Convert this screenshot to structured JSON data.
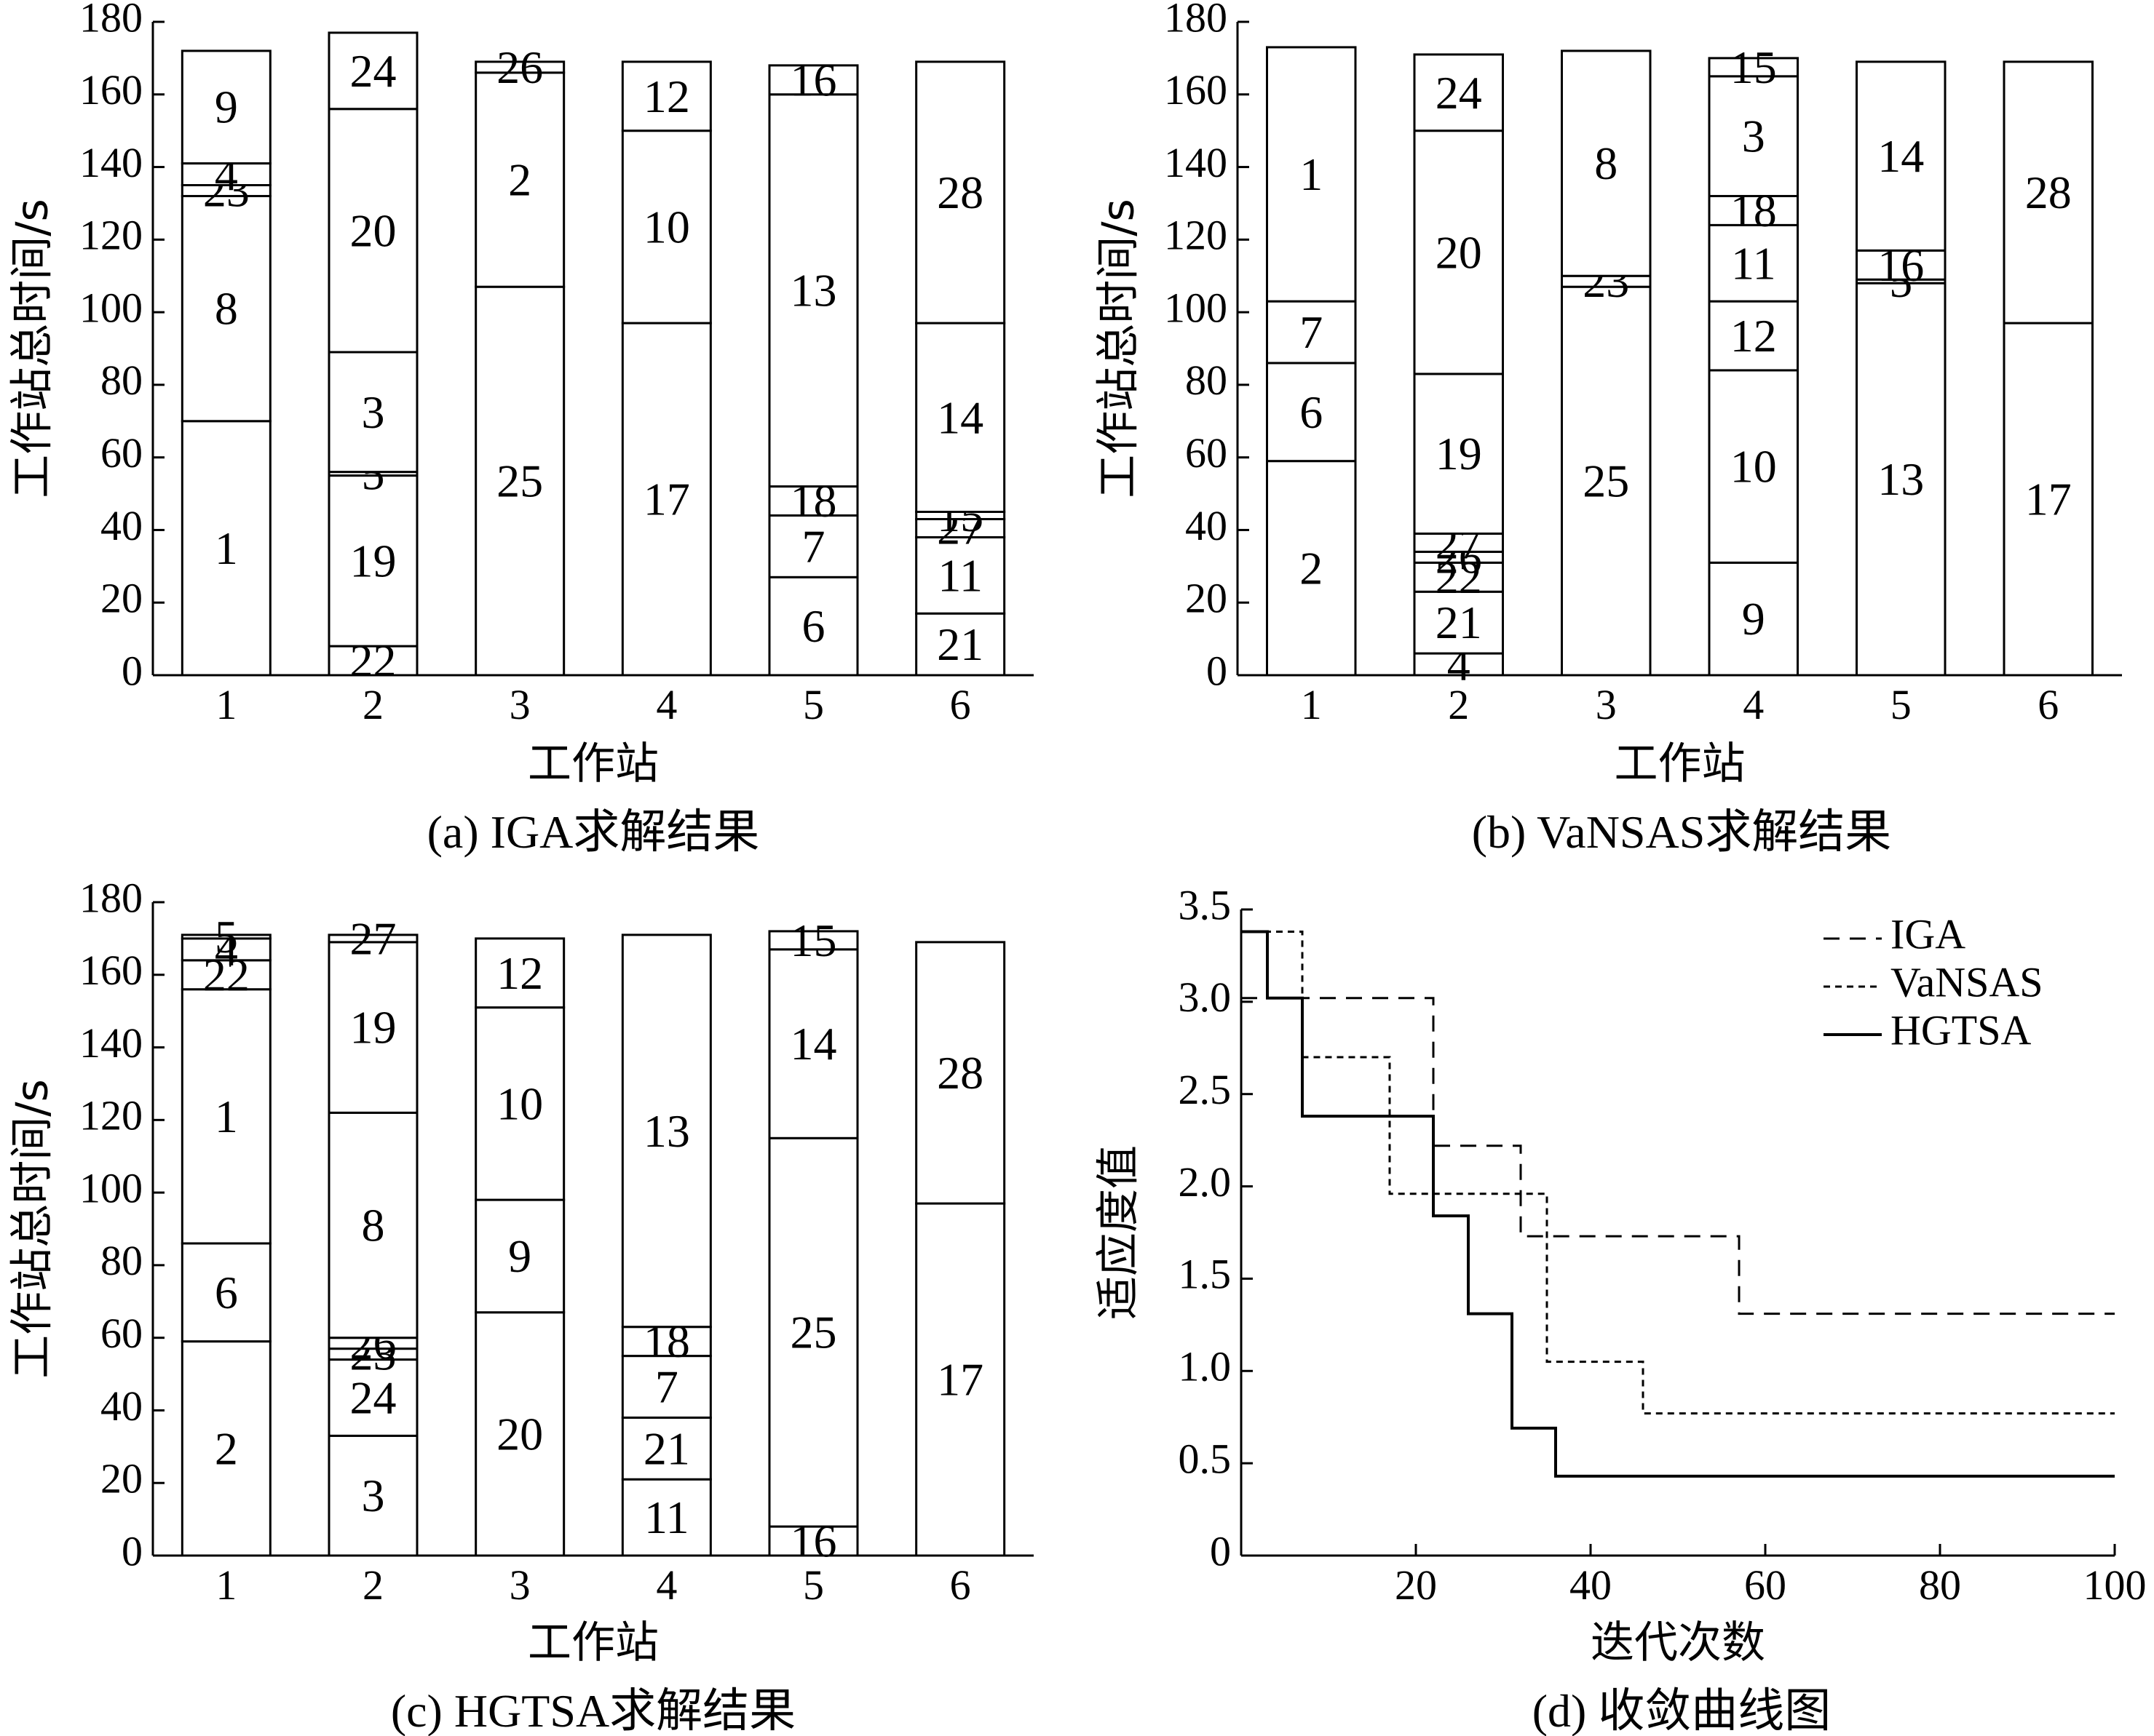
{
  "chart_data": [
    {
      "type": "bar",
      "caption": "(a) IGA求解结果",
      "xlabel": "工作站",
      "ylabel": "工作站总时间/s",
      "ylim": [
        0,
        180
      ],
      "yticks": [
        0,
        20,
        40,
        60,
        80,
        100,
        120,
        140,
        160,
        180
      ],
      "categories": [
        "1",
        "2",
        "3",
        "4",
        "5",
        "6"
      ],
      "stacks": [
        [
          {
            "task": "1",
            "time": 70
          },
          {
            "task": "8",
            "time": 62
          },
          {
            "task": "23",
            "time": 3
          },
          {
            "task": "4",
            "time": 6
          },
          {
            "task": "9",
            "time": 31
          }
        ],
        [
          {
            "task": "22",
            "time": 8
          },
          {
            "task": "19",
            "time": 47
          },
          {
            "task": "5",
            "time": 1
          },
          {
            "task": "3",
            "time": 33
          },
          {
            "task": "20",
            "time": 67
          },
          {
            "task": "24",
            "time": 21
          }
        ],
        [
          {
            "task": "25",
            "time": 107
          },
          {
            "task": "2",
            "time": 59
          },
          {
            "task": "26",
            "time": 3
          }
        ],
        [
          {
            "task": "17",
            "time": 97
          },
          {
            "task": "10",
            "time": 53
          },
          {
            "task": "12",
            "time": 19
          }
        ],
        [
          {
            "task": "6",
            "time": 27
          },
          {
            "task": "7",
            "time": 17
          },
          {
            "task": "18",
            "time": 8
          },
          {
            "task": "13",
            "time": 108
          },
          {
            "task": "16",
            "time": 8
          }
        ],
        [
          {
            "task": "21",
            "time": 17
          },
          {
            "task": "11",
            "time": 21
          },
          {
            "task": "27",
            "time": 5
          },
          {
            "task": "15",
            "time": 2
          },
          {
            "task": "14",
            "time": 52
          },
          {
            "task": "28",
            "time": 72
          }
        ]
      ]
    },
    {
      "type": "bar",
      "caption": "(b) VaNSAS求解结果",
      "xlabel": "工作站",
      "ylabel": "工作站总时间/s",
      "ylim": [
        0,
        180
      ],
      "yticks": [
        0,
        20,
        40,
        60,
        80,
        100,
        120,
        140,
        160,
        180
      ],
      "categories": [
        "1",
        "2",
        "3",
        "4",
        "5",
        "6"
      ],
      "stacks": [
        [
          {
            "task": "2",
            "time": 59
          },
          {
            "task": "6",
            "time": 27
          },
          {
            "task": "7",
            "time": 17
          },
          {
            "task": "1",
            "time": 70
          }
        ],
        [
          {
            "task": "4",
            "time": 6
          },
          {
            "task": "21",
            "time": 17
          },
          {
            "task": "22",
            "time": 8
          },
          {
            "task": "26",
            "time": 3
          },
          {
            "task": "27",
            "time": 5
          },
          {
            "task": "19",
            "time": 44
          },
          {
            "task": "20",
            "time": 67
          },
          {
            "task": "24",
            "time": 21
          }
        ],
        [
          {
            "task": "25",
            "time": 107
          },
          {
            "task": "23",
            "time": 3
          },
          {
            "task": "8",
            "time": 62
          }
        ],
        [
          {
            "task": "9",
            "time": 31
          },
          {
            "task": "10",
            "time": 53
          },
          {
            "task": "12",
            "time": 19
          },
          {
            "task": "11",
            "time": 21
          },
          {
            "task": "18",
            "time": 8
          },
          {
            "task": "3",
            "time": 33
          },
          {
            "task": "15",
            "time": 5
          }
        ],
        [
          {
            "task": "13",
            "time": 108
          },
          {
            "task": "5",
            "time": 1
          },
          {
            "task": "16",
            "time": 8
          },
          {
            "task": "14",
            "time": 52
          }
        ],
        [
          {
            "task": "17",
            "time": 97
          },
          {
            "task": "28",
            "time": 72
          }
        ]
      ]
    },
    {
      "type": "bar",
      "caption": "(c) HGTSA求解结果",
      "xlabel": "工作站",
      "ylabel": "工作站总时间/s",
      "ylim": [
        0,
        180
      ],
      "yticks": [
        0,
        20,
        40,
        60,
        80,
        100,
        120,
        140,
        160,
        180
      ],
      "categories": [
        "1",
        "2",
        "3",
        "4",
        "5",
        "6"
      ],
      "stacks": [
        [
          {
            "task": "2",
            "time": 59
          },
          {
            "task": "6",
            "time": 27
          },
          {
            "task": "1",
            "time": 70
          },
          {
            "task": "22",
            "time": 8
          },
          {
            "task": "4",
            "time": 6
          },
          {
            "task": "5",
            "time": 1
          }
        ],
        [
          {
            "task": "3",
            "time": 33
          },
          {
            "task": "24",
            "time": 21
          },
          {
            "task": "23",
            "time": 3
          },
          {
            "task": "26",
            "time": 3
          },
          {
            "task": "8",
            "time": 62
          },
          {
            "task": "19",
            "time": 47
          },
          {
            "task": "27",
            "time": 2
          }
        ],
        [
          {
            "task": "20",
            "time": 67
          },
          {
            "task": "9",
            "time": 31
          },
          {
            "task": "10",
            "time": 53
          },
          {
            "task": "12",
            "time": 19
          }
        ],
        [
          {
            "task": "11",
            "time": 21
          },
          {
            "task": "21",
            "time": 17
          },
          {
            "task": "7",
            "time": 17
          },
          {
            "task": "18",
            "time": 8
          },
          {
            "task": "13",
            "time": 108
          }
        ],
        [
          {
            "task": "16",
            "time": 8
          },
          {
            "task": "25",
            "time": 107
          },
          {
            "task": "14",
            "time": 52
          },
          {
            "task": "15",
            "time": 5
          }
        ],
        [
          {
            "task": "17",
            "time": 97
          },
          {
            "task": "28",
            "time": 72
          }
        ]
      ]
    },
    {
      "type": "line",
      "caption": "(d) 收敛曲线图",
      "xlabel": "迭代次数",
      "ylabel": "适应度值",
      "xlim": [
        0,
        100
      ],
      "ylim": [
        0,
        3.5
      ],
      "xticks": [
        20,
        40,
        60,
        80,
        100
      ],
      "yticks": [
        "0",
        "0.5",
        "1.0",
        "1.5",
        "2.0",
        "2.5",
        "3.0",
        "3.5"
      ],
      "legend": "top-right",
      "series": [
        {
          "name": "IGA",
          "style": "dashed",
          "x": [
            0,
            22,
            22,
            32,
            32,
            57,
            57,
            100
          ],
          "y": [
            3.02,
            3.02,
            2.22,
            2.22,
            1.73,
            1.73,
            1.31,
            1.31
          ]
        },
        {
          "name": "VaNSAS",
          "style": "dotted",
          "x": [
            0,
            7,
            7,
            17,
            17,
            35,
            35,
            46,
            46,
            100
          ],
          "y": [
            3.38,
            3.38,
            2.7,
            2.7,
            1.96,
            1.96,
            1.05,
            1.05,
            0.77,
            0.77
          ]
        },
        {
          "name": "HGTSA",
          "style": "solid",
          "x": [
            0,
            3,
            3,
            7,
            7,
            22,
            22,
            26,
            26,
            31,
            31,
            36,
            36,
            100
          ],
          "y": [
            3.38,
            3.38,
            3.02,
            3.02,
            2.38,
            2.38,
            1.84,
            1.84,
            1.31,
            1.31,
            0.69,
            0.69,
            0.43,
            0.43
          ]
        }
      ]
    }
  ]
}
